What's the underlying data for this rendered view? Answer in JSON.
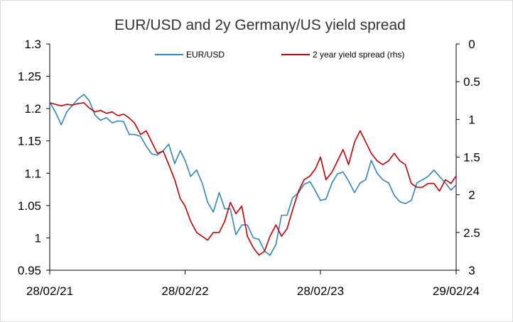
{
  "chart_data": {
    "type": "line",
    "title": "EUR/USD and 2y Germany/US yield spread",
    "x_axis": {
      "type": "date",
      "range": [
        "2021-02-28",
        "2024-02-29"
      ],
      "tick_labels": [
        "28/02/21",
        "28/02/22",
        "28/02/23",
        "29/02/24"
      ],
      "tick_values": [
        "2021-02-28",
        "2022-02-28",
        "2023-02-28",
        "2024-02-29"
      ]
    },
    "y_left": {
      "range": [
        0.95,
        1.3
      ],
      "ticks": [
        0.95,
        1,
        1.05,
        1.1,
        1.15,
        1.2,
        1.25,
        1.3
      ],
      "tick_labels": [
        "0.95",
        "1",
        "1.05",
        "1.1",
        "1.15",
        "1.2",
        "1.25",
        "1.3"
      ]
    },
    "y_right": {
      "range": [
        0,
        3
      ],
      "inverted": true,
      "ticks": [
        0,
        0.5,
        1,
        1.5,
        2,
        2.5,
        3
      ],
      "tick_labels": [
        "0",
        "0.5",
        "1",
        "1.5",
        "2",
        "2.5",
        "3"
      ]
    },
    "grid": false,
    "legend_position": "top",
    "series": [
      {
        "name": "EUR/USD",
        "axis": "left",
        "color": "#2E86C1",
        "points": [
          [
            "2021-02-28",
            1.21
          ],
          [
            "2021-03-15",
            1.195
          ],
          [
            "2021-03-31",
            1.175
          ],
          [
            "2021-04-15",
            1.195
          ],
          [
            "2021-04-30",
            1.205
          ],
          [
            "2021-05-15",
            1.215
          ],
          [
            "2021-05-31",
            1.222
          ],
          [
            "2021-06-15",
            1.212
          ],
          [
            "2021-06-30",
            1.19
          ],
          [
            "2021-07-15",
            1.182
          ],
          [
            "2021-07-31",
            1.186
          ],
          [
            "2021-08-15",
            1.178
          ],
          [
            "2021-08-31",
            1.181
          ],
          [
            "2021-09-15",
            1.18
          ],
          [
            "2021-09-30",
            1.16
          ],
          [
            "2021-10-15",
            1.16
          ],
          [
            "2021-10-31",
            1.157
          ],
          [
            "2021-11-15",
            1.142
          ],
          [
            "2021-11-30",
            1.13
          ],
          [
            "2021-12-15",
            1.128
          ],
          [
            "2021-12-31",
            1.135
          ],
          [
            "2022-01-15",
            1.145
          ],
          [
            "2022-01-31",
            1.115
          ],
          [
            "2022-02-15",
            1.135
          ],
          [
            "2022-02-28",
            1.12
          ],
          [
            "2022-03-15",
            1.095
          ],
          [
            "2022-03-31",
            1.105
          ],
          [
            "2022-04-15",
            1.085
          ],
          [
            "2022-04-30",
            1.055
          ],
          [
            "2022-05-15",
            1.04
          ],
          [
            "2022-05-31",
            1.07
          ],
          [
            "2022-06-15",
            1.045
          ],
          [
            "2022-06-30",
            1.045
          ],
          [
            "2022-07-15",
            1.005
          ],
          [
            "2022-07-31",
            1.02
          ],
          [
            "2022-08-15",
            1.02
          ],
          [
            "2022-08-31",
            1.0
          ],
          [
            "2022-09-15",
            0.998
          ],
          [
            "2022-09-30",
            0.98
          ],
          [
            "2022-10-15",
            0.973
          ],
          [
            "2022-10-31",
            0.99
          ],
          [
            "2022-11-15",
            1.035
          ],
          [
            "2022-11-30",
            1.035
          ],
          [
            "2022-12-15",
            1.062
          ],
          [
            "2022-12-31",
            1.07
          ],
          [
            "2023-01-15",
            1.083
          ],
          [
            "2023-01-31",
            1.087
          ],
          [
            "2023-02-15",
            1.072
          ],
          [
            "2023-02-28",
            1.058
          ],
          [
            "2023-03-15",
            1.06
          ],
          [
            "2023-03-31",
            1.085
          ],
          [
            "2023-04-15",
            1.099
          ],
          [
            "2023-04-30",
            1.102
          ],
          [
            "2023-05-15",
            1.088
          ],
          [
            "2023-05-31",
            1.07
          ],
          [
            "2023-06-15",
            1.085
          ],
          [
            "2023-06-30",
            1.09
          ],
          [
            "2023-07-15",
            1.12
          ],
          [
            "2023-07-31",
            1.1
          ],
          [
            "2023-08-15",
            1.09
          ],
          [
            "2023-08-31",
            1.085
          ],
          [
            "2023-09-15",
            1.066
          ],
          [
            "2023-09-30",
            1.056
          ],
          [
            "2023-10-15",
            1.053
          ],
          [
            "2023-10-31",
            1.058
          ],
          [
            "2023-11-15",
            1.085
          ],
          [
            "2023-11-30",
            1.09
          ],
          [
            "2023-12-15",
            1.095
          ],
          [
            "2023-12-31",
            1.105
          ],
          [
            "2024-01-15",
            1.095
          ],
          [
            "2024-01-31",
            1.085
          ],
          [
            "2024-02-15",
            1.074
          ],
          [
            "2024-02-29",
            1.082
          ]
        ]
      },
      {
        "name": "2 year yield spread (rhs)",
        "axis": "right",
        "color": "#C00000",
        "points": [
          [
            "2021-02-28",
            0.78
          ],
          [
            "2021-03-15",
            0.8
          ],
          [
            "2021-03-31",
            0.82
          ],
          [
            "2021-04-15",
            0.8
          ],
          [
            "2021-04-30",
            0.81
          ],
          [
            "2021-05-15",
            0.79
          ],
          [
            "2021-05-31",
            0.78
          ],
          [
            "2021-06-15",
            0.85
          ],
          [
            "2021-06-30",
            0.9
          ],
          [
            "2021-07-15",
            0.88
          ],
          [
            "2021-07-31",
            0.92
          ],
          [
            "2021-08-15",
            0.9
          ],
          [
            "2021-08-31",
            0.95
          ],
          [
            "2021-09-15",
            0.93
          ],
          [
            "2021-09-30",
            0.98
          ],
          [
            "2021-10-15",
            1.05
          ],
          [
            "2021-10-31",
            1.2
          ],
          [
            "2021-11-15",
            1.15
          ],
          [
            "2021-11-30",
            1.3
          ],
          [
            "2021-12-15",
            1.45
          ],
          [
            "2021-12-31",
            1.42
          ],
          [
            "2022-01-15",
            1.6
          ],
          [
            "2022-01-31",
            1.8
          ],
          [
            "2022-02-15",
            2.05
          ],
          [
            "2022-02-28",
            2.15
          ],
          [
            "2022-03-15",
            2.35
          ],
          [
            "2022-03-31",
            2.5
          ],
          [
            "2022-04-15",
            2.55
          ],
          [
            "2022-04-30",
            2.6
          ],
          [
            "2022-05-15",
            2.5
          ],
          [
            "2022-05-31",
            2.5
          ],
          [
            "2022-06-15",
            2.35
          ],
          [
            "2022-06-30",
            2.1
          ],
          [
            "2022-07-15",
            2.25
          ],
          [
            "2022-07-31",
            2.15
          ],
          [
            "2022-08-15",
            2.55
          ],
          [
            "2022-08-31",
            2.7
          ],
          [
            "2022-09-15",
            2.8
          ],
          [
            "2022-09-30",
            2.75
          ],
          [
            "2022-10-15",
            2.55
          ],
          [
            "2022-10-31",
            2.4
          ],
          [
            "2022-11-15",
            2.55
          ],
          [
            "2022-11-30",
            2.45
          ],
          [
            "2022-12-15",
            2.2
          ],
          [
            "2022-12-31",
            1.95
          ],
          [
            "2023-01-15",
            1.8
          ],
          [
            "2023-01-31",
            1.75
          ],
          [
            "2023-02-15",
            1.65
          ],
          [
            "2023-02-28",
            1.5
          ],
          [
            "2023-03-15",
            1.8
          ],
          [
            "2023-03-31",
            1.7
          ],
          [
            "2023-04-15",
            1.55
          ],
          [
            "2023-04-30",
            1.4
          ],
          [
            "2023-05-15",
            1.6
          ],
          [
            "2023-05-31",
            1.3
          ],
          [
            "2023-06-15",
            1.15
          ],
          [
            "2023-06-30",
            1.3
          ],
          [
            "2023-07-15",
            1.45
          ],
          [
            "2023-07-31",
            1.55
          ],
          [
            "2023-08-15",
            1.6
          ],
          [
            "2023-08-31",
            1.55
          ],
          [
            "2023-09-15",
            1.45
          ],
          [
            "2023-09-30",
            1.55
          ],
          [
            "2023-10-15",
            1.6
          ],
          [
            "2023-10-31",
            1.85
          ],
          [
            "2023-11-15",
            1.9
          ],
          [
            "2023-11-30",
            1.9
          ],
          [
            "2023-12-15",
            1.85
          ],
          [
            "2023-12-31",
            1.85
          ],
          [
            "2024-01-15",
            1.95
          ],
          [
            "2024-01-31",
            1.8
          ],
          [
            "2024-02-15",
            1.85
          ],
          [
            "2024-02-29",
            1.75
          ]
        ]
      }
    ]
  }
}
